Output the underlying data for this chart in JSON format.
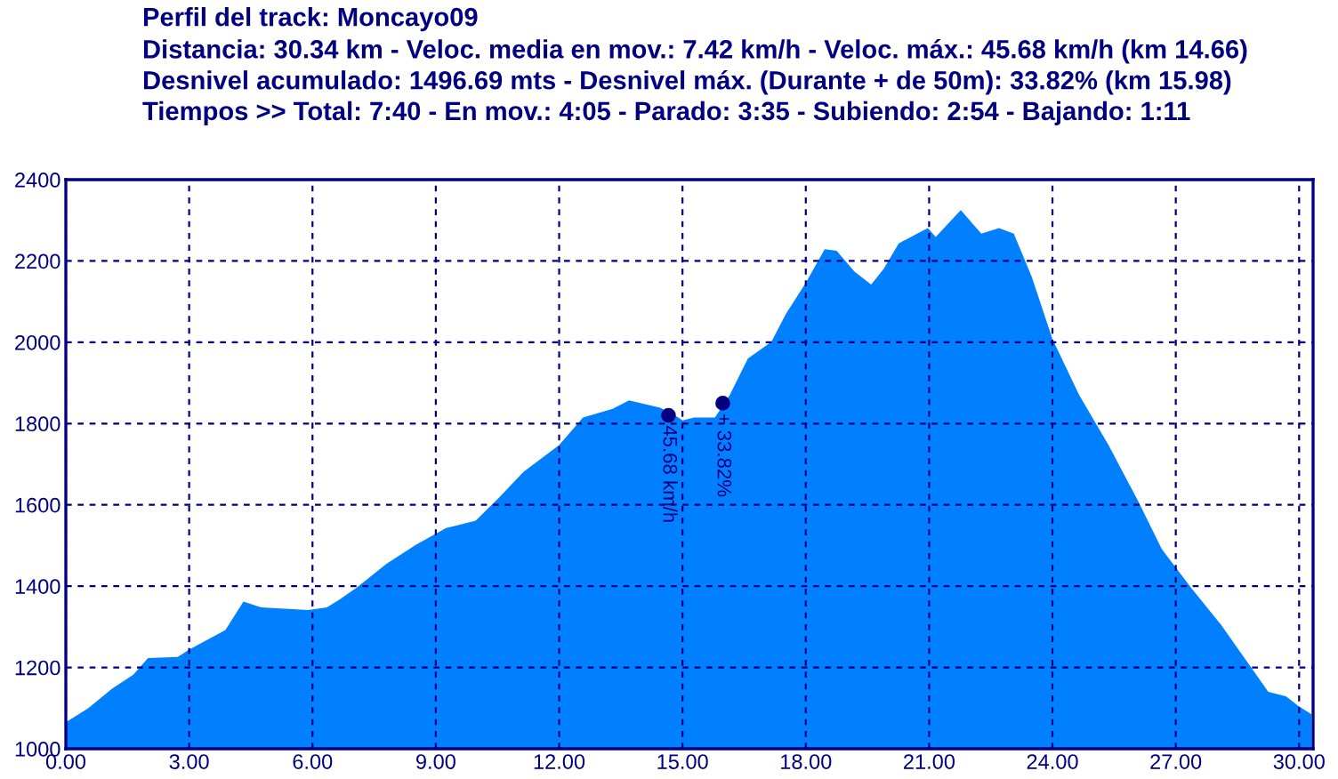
{
  "chart_data": {
    "type": "area",
    "title": "Perfil del track: Moncayo09",
    "subtitle": "Distancia: 30.34 km - Veloc. media en mov.: 7.42 km/h - Veloc. máx.: 45.68 km/h (km 14.66)\nDesnivel acumulado: 1496.69 mts - Desnivel máx. (Durante + de 50m): 33.82% (km 15.98)\nTiempos >> Total: 7:40 - En mov.: 4:05 - Parado: 3:35 - Subiendo: 2:54 - Bajando: 1:11",
    "x": [
      0,
      0.55,
      1.13,
      1.64,
      2.0,
      2.72,
      3.0,
      3.88,
      4.32,
      4.75,
      5.9,
      6.35,
      6.64,
      7.07,
      7.8,
      8.52,
      9.25,
      9.97,
      10.55,
      11.13,
      12.0,
      12.58,
      13.3,
      13.7,
      14.46,
      14.9,
      15.0,
      15.29,
      15.79,
      16.15,
      16.59,
      17.16,
      17.52,
      18.0,
      18.46,
      18.75,
      19.18,
      19.59,
      19.9,
      20.26,
      20.76,
      20.97,
      21.16,
      21.77,
      22.27,
      22.7,
      23.06,
      23.5,
      24.0,
      24.65,
      25.37,
      26.09,
      26.66,
      27.39,
      28.1,
      28.82,
      29.25,
      29.68,
      29.97,
      30.3
    ],
    "series": [
      {
        "color": "#0080ff",
        "values": [
          1065,
          1100,
          1148,
          1182,
          1223,
          1226,
          1244,
          1292,
          1362,
          1348,
          1341,
          1348,
          1366,
          1396,
          1455,
          1502,
          1543,
          1561,
          1619,
          1681,
          1747,
          1815,
          1836,
          1857,
          1839,
          1815,
          1808,
          1815,
          1815,
          1870,
          1960,
          2001,
          2070,
          2146,
          2229,
          2225,
          2174,
          2142,
          2181,
          2243,
          2270,
          2281,
          2259,
          2325,
          2267,
          2281,
          2267,
          2160,
          2008,
          1870,
          1746,
          1608,
          1491,
          1394,
          1305,
          1202,
          1140,
          1129,
          1106,
          1085
        ]
      }
    ],
    "xlim": [
      0,
      30.34
    ],
    "ylim": [
      1000,
      2400
    ],
    "xticks": [
      {
        "value": 0,
        "label": "0.00"
      },
      {
        "value": 3,
        "label": "3.00"
      },
      {
        "value": 6,
        "label": "6.00"
      },
      {
        "value": 9,
        "label": "9.00"
      },
      {
        "value": 12,
        "label": "12.00"
      },
      {
        "value": 15,
        "label": "15.00"
      },
      {
        "value": 18,
        "label": "18.00"
      },
      {
        "value": 21,
        "label": "21.00"
      },
      {
        "value": 24,
        "label": "24.00"
      },
      {
        "value": 27,
        "label": "27.00"
      },
      {
        "value": 30,
        "label": "30.00"
      }
    ],
    "yticks": [
      1000,
      1200,
      1400,
      1600,
      1800,
      2000,
      2200,
      2400
    ],
    "grid": true,
    "annotations": [
      {
        "text": "45.68 km/h",
        "x": 14.66,
        "y": 1820
      },
      {
        "text": "+ 33.82%",
        "x": 15.98,
        "y": 1850
      }
    ]
  }
}
